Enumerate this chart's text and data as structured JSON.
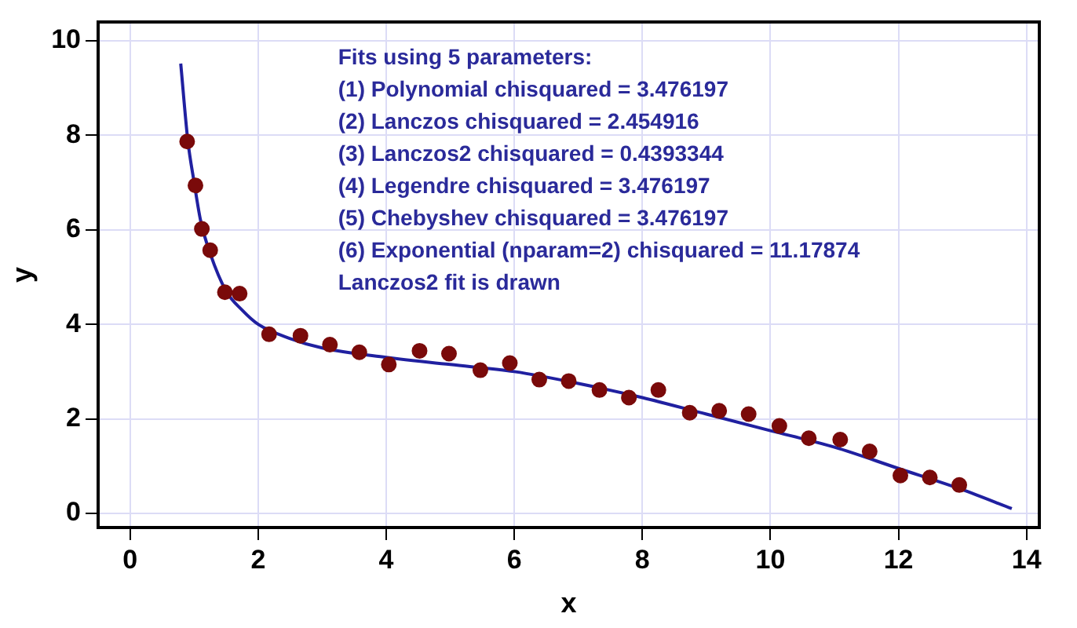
{
  "chart_data": {
    "type": "scatter",
    "xlabel": "x",
    "ylabel": "y",
    "xlim": [
      -0.5,
      14.2
    ],
    "ylim": [
      -0.3,
      10.4
    ],
    "xticks": [
      0,
      2,
      4,
      6,
      8,
      10,
      12,
      14
    ],
    "yticks": [
      0,
      2,
      4,
      6,
      8,
      10
    ],
    "grid": true,
    "legend": false,
    "marker": "circle",
    "annotations": [
      "Fits using 5 parameters:",
      "(1) Polynomial chisquared = 3.476197",
      "(2) Lanczos chisquared = 2.454916",
      "(3) Lanczos2 chisquared = 0.4393344",
      "(4) Legendre chisquared = 3.476197",
      "(5) Chebyshev chisquared = 3.476197",
      "(6) Exponential (nparam=2) chisquared = 11.17874",
      "Lanczos2 fit is drawn"
    ],
    "series": [
      {
        "color": "#7a0a0a",
        "x": [
          0.89,
          1.02,
          1.12,
          1.25,
          1.48,
          1.71,
          2.17,
          2.66,
          3.12,
          3.58,
          4.04,
          4.52,
          4.98,
          5.47,
          5.93,
          6.39,
          6.85,
          7.33,
          7.79,
          8.25,
          8.74,
          9.2,
          9.66,
          10.14,
          10.6,
          11.09,
          11.55,
          12.03,
          12.49,
          12.95
        ],
        "values": [
          7.87,
          6.94,
          6.02,
          5.57,
          4.68,
          4.65,
          3.79,
          3.76,
          3.57,
          3.41,
          3.15,
          3.44,
          3.38,
          3.03,
          3.18,
          2.83,
          2.8,
          2.61,
          2.45,
          2.61,
          2.13,
          2.17,
          2.1,
          1.85,
          1.59,
          1.56,
          1.31,
          0.8,
          0.76,
          0.6
        ]
      },
      {
        "type": "line",
        "color": "#2020a0",
        "marker": "none",
        "x": [
          0.79,
          0.9,
          1.0,
          1.1,
          1.25,
          1.5,
          1.75,
          2.0,
          2.5,
          3,
          4,
          5,
          6,
          7,
          8,
          9,
          10,
          11,
          12,
          13,
          13.77
        ],
        "values": [
          9.52,
          7.9,
          7.0,
          6.2,
          5.5,
          4.7,
          4.3,
          4.0,
          3.7,
          3.5,
          3.3,
          3.15,
          3.0,
          2.75,
          2.45,
          2.1,
          1.75,
          1.4,
          0.95,
          0.5,
          0.1
        ]
      }
    ]
  }
}
